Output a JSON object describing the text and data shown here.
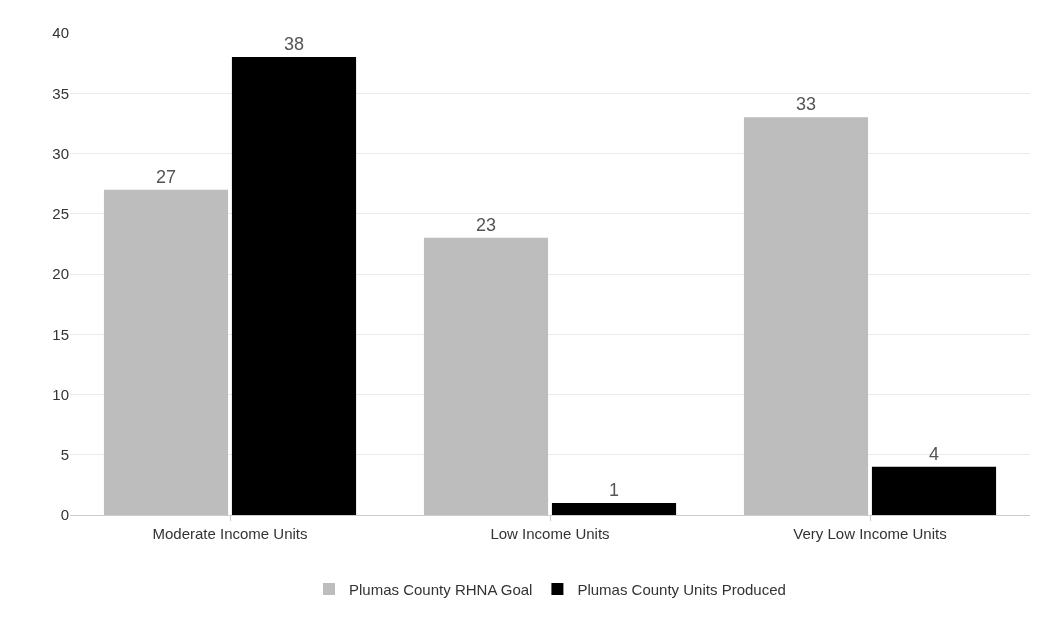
{
  "chart_data": {
    "type": "bar",
    "categories": [
      "Moderate Income Units",
      "Low Income Units",
      "Very Low Income Units"
    ],
    "series": [
      {
        "name": "Plumas County RHNA Goal",
        "color": "#bdbdbd",
        "values": [
          27,
          23,
          33
        ]
      },
      {
        "name": "Plumas County Units Produced",
        "color": "#000000",
        "values": [
          38,
          1,
          4
        ]
      }
    ],
    "ylim": [
      0,
      40
    ],
    "yticks": [
      0,
      5,
      10,
      15,
      20,
      25,
      30,
      35,
      40
    ],
    "grid": "y",
    "legend": "bottom",
    "data_labels": true
  }
}
